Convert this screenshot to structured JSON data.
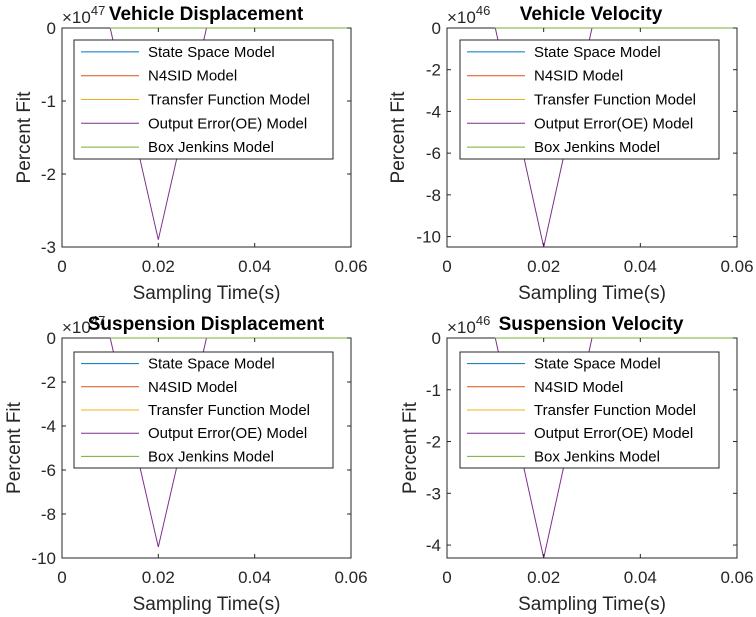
{
  "chart_data": [
    {
      "type": "line",
      "title": "Vehicle Displacement",
      "xlabel": "Sampling Time(s)",
      "ylabel": "Percent Fit",
      "exponent": "×10",
      "exponent_power": "47",
      "xlim": [
        0,
        0.06
      ],
      "ylim": [
        -3,
        0
      ],
      "xticks": [
        "0",
        "0.02",
        "0.04",
        "0.06"
      ],
      "xtick_values": [
        0,
        0.02,
        0.04,
        0.06
      ],
      "yticks": [
        "0",
        "-1",
        "-2",
        "-3"
      ],
      "ytick_values": [
        0,
        -1,
        -2,
        -3
      ],
      "grid": false,
      "legend_position": "top",
      "series": [
        {
          "name": "State Space Model",
          "color": "#0072BD",
          "x": [
            0.01,
            0.02,
            0.03,
            0.06
          ],
          "y": [
            0,
            0,
            0,
            0
          ]
        },
        {
          "name": "N4SID Model",
          "color": "#D95319",
          "x": [
            0.01,
            0.02,
            0.03,
            0.06
          ],
          "y": [
            0,
            0,
            0,
            0
          ]
        },
        {
          "name": "Transfer Function Model",
          "color": "#EDB120",
          "x": [
            0.01,
            0.02,
            0.03,
            0.06
          ],
          "y": [
            0,
            0,
            0,
            0
          ]
        },
        {
          "name": "Output Error(OE) Model",
          "color": "#7E2F8E",
          "x": [
            0.01,
            0.02,
            0.03
          ],
          "y": [
            0,
            -2.9,
            0
          ]
        },
        {
          "name": "Box Jenkins Model",
          "color": "#77AC30",
          "x": [
            0.01,
            0.02,
            0.03,
            0.06
          ],
          "y": [
            0,
            0,
            0,
            0
          ]
        }
      ]
    },
    {
      "type": "line",
      "title": "Vehicle Velocity",
      "xlabel": "Sampling Time(s)",
      "ylabel": "Percent Fit",
      "exponent": "×10",
      "exponent_power": "46",
      "xlim": [
        0,
        0.06
      ],
      "ylim": [
        -10.5,
        0
      ],
      "xticks": [
        "0",
        "0.02",
        "0.04",
        "0.06"
      ],
      "xtick_values": [
        0,
        0.02,
        0.04,
        0.06
      ],
      "yticks": [
        "0",
        "-2",
        "-4",
        "-6",
        "-8",
        "-10"
      ],
      "ytick_values": [
        0,
        -2,
        -4,
        -6,
        -8,
        -10
      ],
      "grid": false,
      "legend_position": "top",
      "series": [
        {
          "name": "State Space Model",
          "color": "#0072BD",
          "x": [
            0.01,
            0.02,
            0.03,
            0.06
          ],
          "y": [
            0,
            0,
            0,
            0
          ]
        },
        {
          "name": "N4SID Model",
          "color": "#D95319",
          "x": [
            0.01,
            0.02,
            0.03,
            0.06
          ],
          "y": [
            0,
            0,
            0,
            0
          ]
        },
        {
          "name": "Transfer Function Model",
          "color": "#EDB120",
          "x": [
            0.01,
            0.02,
            0.03,
            0.06
          ],
          "y": [
            0,
            0,
            0,
            0
          ]
        },
        {
          "name": "Output Error(OE) Model",
          "color": "#7E2F8E",
          "x": [
            0.01,
            0.02,
            0.03
          ],
          "y": [
            0,
            -10.5,
            0
          ]
        },
        {
          "name": "Box Jenkins Model",
          "color": "#77AC30",
          "x": [
            0.01,
            0.02,
            0.03,
            0.06
          ],
          "y": [
            0,
            0,
            0,
            0
          ]
        }
      ]
    },
    {
      "type": "line",
      "title": "Suspension Displacement",
      "xlabel": "Sampling Time(s)",
      "ylabel": "Percent Fit",
      "exponent": "×10",
      "exponent_power": "47",
      "xlim": [
        0,
        0.06
      ],
      "ylim": [
        -10,
        0
      ],
      "xticks": [
        "0",
        "0.02",
        "0.04",
        "0.06"
      ],
      "xtick_values": [
        0,
        0.02,
        0.04,
        0.06
      ],
      "yticks": [
        "0",
        "-2",
        "-4",
        "-6",
        "-8",
        "-10"
      ],
      "ytick_values": [
        0,
        -2,
        -4,
        -6,
        -8,
        -10
      ],
      "grid": false,
      "legend_position": "top",
      "series": [
        {
          "name": "State Space Model",
          "color": "#0072BD",
          "x": [
            0.01,
            0.02,
            0.03,
            0.06
          ],
          "y": [
            0,
            0,
            0,
            0
          ]
        },
        {
          "name": "N4SID Model",
          "color": "#D95319",
          "x": [
            0.01,
            0.02,
            0.03,
            0.06
          ],
          "y": [
            0,
            0,
            0,
            0
          ]
        },
        {
          "name": "Transfer Function Model",
          "color": "#EDB120",
          "x": [
            0.01,
            0.02,
            0.03,
            0.06
          ],
          "y": [
            0,
            0,
            0,
            0
          ]
        },
        {
          "name": "Output Error(OE) Model",
          "color": "#7E2F8E",
          "x": [
            0.01,
            0.02,
            0.03
          ],
          "y": [
            0,
            -9.5,
            0
          ]
        },
        {
          "name": "Box Jenkins Model",
          "color": "#77AC30",
          "x": [
            0.01,
            0.02,
            0.03,
            0.06
          ],
          "y": [
            0,
            0,
            0,
            0
          ]
        }
      ]
    },
    {
      "type": "line",
      "title": "Suspension Velocity",
      "xlabel": "Sampling Time(s)",
      "ylabel": "Percent Fit",
      "exponent": "×10",
      "exponent_power": "46",
      "xlim": [
        0,
        0.06
      ],
      "ylim": [
        -4.25,
        0
      ],
      "xticks": [
        "0",
        "0.02",
        "0.04",
        "0.06"
      ],
      "xtick_values": [
        0,
        0.02,
        0.04,
        0.06
      ],
      "yticks": [
        "0",
        "-1",
        "-2",
        "-3",
        "-4"
      ],
      "ytick_values": [
        0,
        -1,
        -2,
        -3,
        -4
      ],
      "grid": false,
      "legend_position": "top",
      "series": [
        {
          "name": "State Space Model",
          "color": "#0072BD",
          "x": [
            0.01,
            0.02,
            0.03,
            0.06
          ],
          "y": [
            0,
            0,
            0,
            0
          ]
        },
        {
          "name": "N4SID Model",
          "color": "#D95319",
          "x": [
            0.01,
            0.02,
            0.03,
            0.06
          ],
          "y": [
            0,
            0,
            0,
            0
          ]
        },
        {
          "name": "Transfer Function Model",
          "color": "#EDB120",
          "x": [
            0.01,
            0.02,
            0.03,
            0.06
          ],
          "y": [
            0,
            0,
            0,
            0
          ]
        },
        {
          "name": "Output Error(OE) Model",
          "color": "#7E2F8E",
          "x": [
            0.01,
            0.02,
            0.03
          ],
          "y": [
            0,
            -4.25,
            0
          ]
        },
        {
          "name": "Box Jenkins Model",
          "color": "#77AC30",
          "x": [
            0.01,
            0.02,
            0.03,
            0.06
          ],
          "y": [
            0,
            0,
            0,
            0
          ]
        }
      ]
    }
  ]
}
